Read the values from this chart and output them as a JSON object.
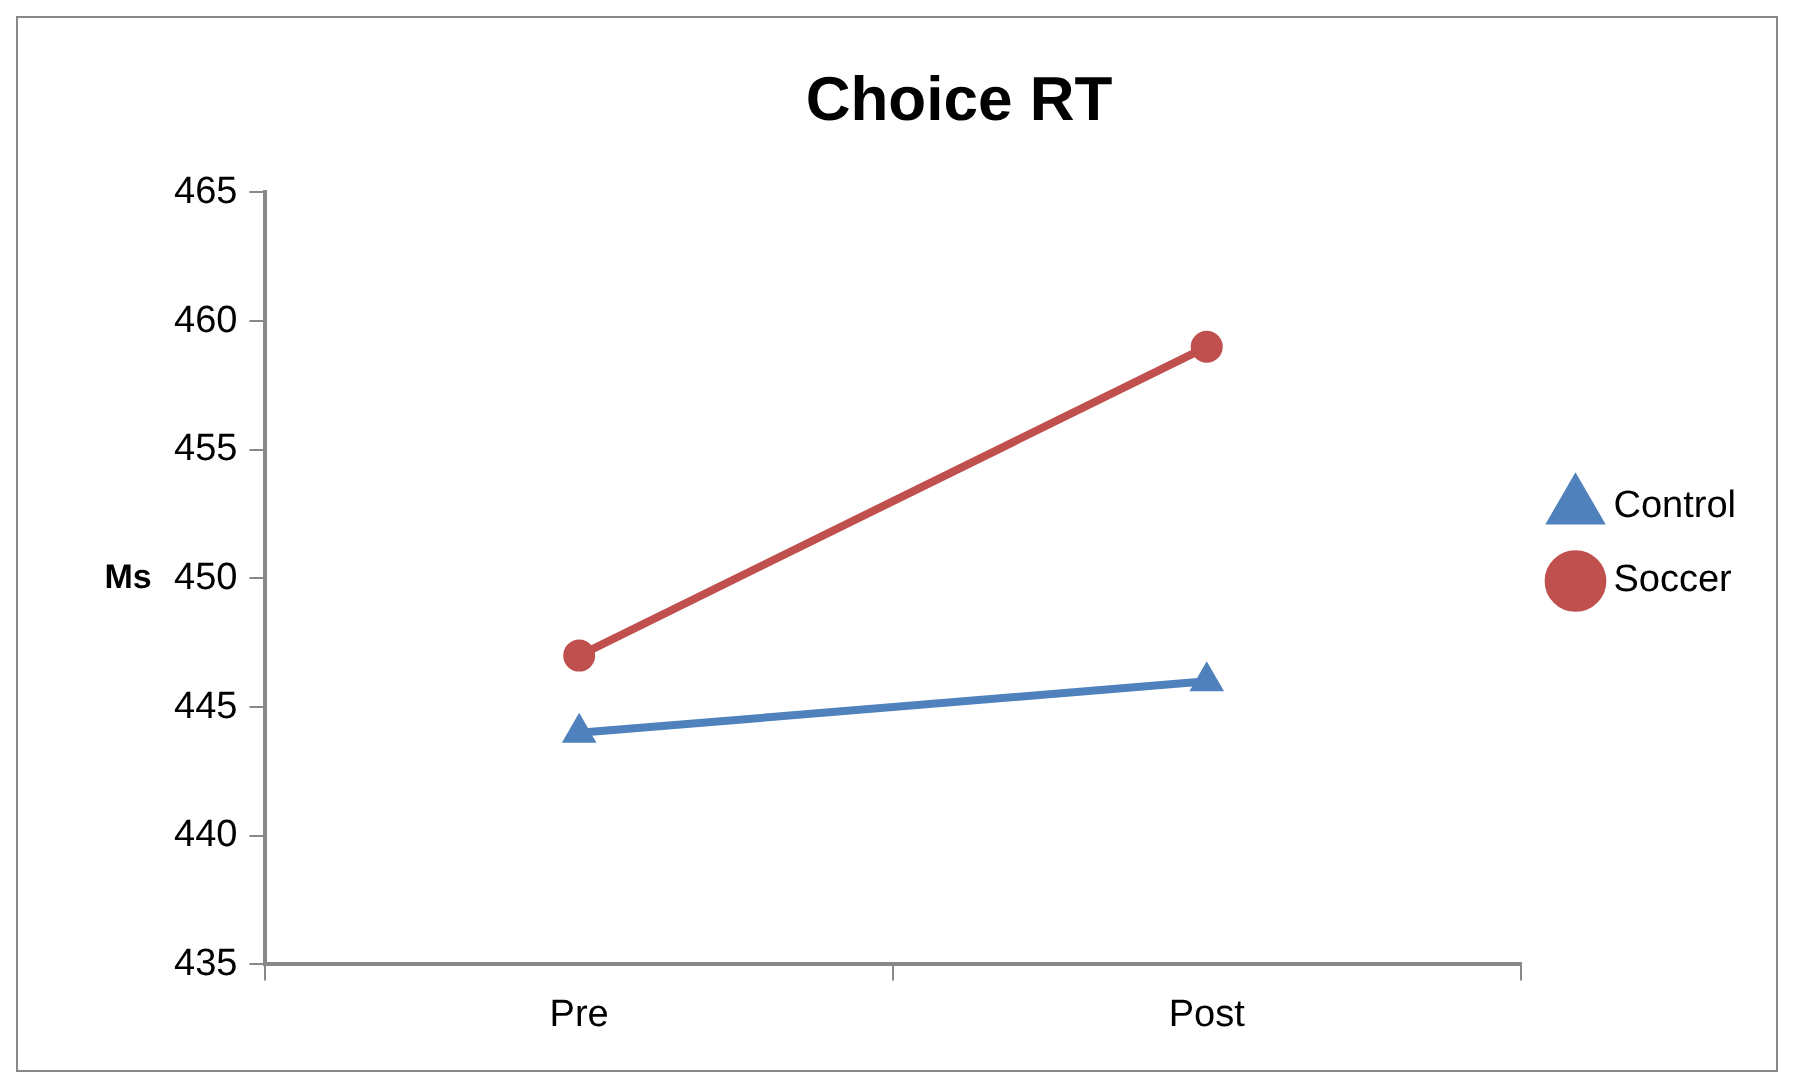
{
  "chart_data": {
    "type": "line",
    "title": "Choice RT",
    "ylabel": "Ms",
    "categories": [
      "Pre",
      "Post"
    ],
    "series": [
      {
        "name": "Control",
        "color": "#4f81bd",
        "values": [
          444,
          446
        ],
        "marker": "triangle"
      },
      {
        "name": "Soccer",
        "color": "#c0504d",
        "values": [
          447,
          459
        ],
        "marker": "circle"
      }
    ],
    "ylim": [
      435,
      465
    ],
    "yticks": [
      435,
      440,
      445,
      450,
      455,
      460,
      465
    ],
    "grid": false,
    "legend": "right",
    "line_style": "solid"
  }
}
